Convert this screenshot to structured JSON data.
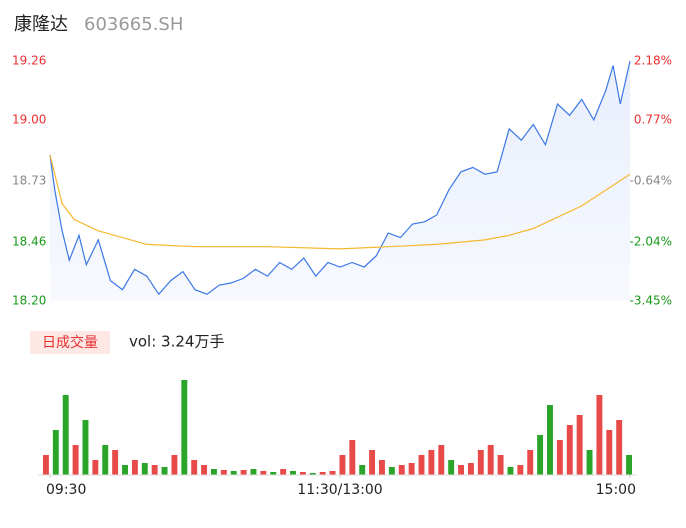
{
  "header": {
    "name": "康隆达",
    "code": "603665.SH"
  },
  "chart_data": {
    "type": "line",
    "xlim": [
      0,
      240
    ],
    "xticks": [
      {
        "value": 0,
        "label": "09:30"
      },
      {
        "value": 120,
        "label": "11:30/13:00"
      },
      {
        "value": 240,
        "label": "15:00"
      }
    ],
    "ylim": [
      18.2,
      19.26
    ],
    "yticks": [
      {
        "value": 19.26,
        "label": "19.26"
      },
      {
        "value": 19.0,
        "label": "19.00"
      },
      {
        "value": 18.73,
        "label": "18.73"
      },
      {
        "value": 18.46,
        "label": "18.46"
      },
      {
        "value": 18.2,
        "label": "18.20"
      }
    ],
    "y2ticks": [
      "2.18%",
      "0.77%",
      "-0.64%",
      "-2.04%",
      "-3.45%"
    ],
    "ytick_colors": [
      "#e83030",
      "#e83030",
      "#888888",
      "#1a9a1a",
      "#1a9a1a"
    ],
    "series": [
      {
        "color": "#3b78e7",
        "x": [
          0,
          2,
          5,
          8,
          12,
          15,
          20,
          25,
          30,
          35,
          40,
          45,
          50,
          55,
          60,
          65,
          70,
          75,
          80,
          85,
          90,
          95,
          100,
          105,
          110,
          115,
          120,
          125,
          130,
          135,
          140,
          145,
          150,
          155,
          160,
          165,
          170,
          175,
          180,
          185,
          190,
          195,
          200,
          205,
          210,
          215,
          220,
          225,
          230,
          233,
          236,
          240
        ],
        "values": [
          18.845,
          18.69,
          18.51,
          18.38,
          18.49,
          18.36,
          18.47,
          18.29,
          18.25,
          18.34,
          18.31,
          18.23,
          18.29,
          18.33,
          18.25,
          18.23,
          18.27,
          18.28,
          18.3,
          18.34,
          18.31,
          18.37,
          18.34,
          18.39,
          18.31,
          18.37,
          18.35,
          18.37,
          18.35,
          18.4,
          18.5,
          18.48,
          18.54,
          18.55,
          18.58,
          18.69,
          18.77,
          18.79,
          18.76,
          18.77,
          18.96,
          18.91,
          18.98,
          18.89,
          19.07,
          19.02,
          19.09,
          19.0,
          19.13,
          19.24,
          19.07,
          19.26
        ]
      },
      {
        "color": "#f5b82e",
        "x": [
          0,
          5,
          10,
          20,
          30,
          40,
          60,
          90,
          120,
          140,
          160,
          180,
          190,
          200,
          210,
          220,
          230,
          240
        ],
        "values": [
          18.845,
          18.63,
          18.56,
          18.51,
          18.48,
          18.45,
          18.44,
          18.44,
          18.43,
          18.44,
          18.45,
          18.47,
          18.49,
          18.52,
          18.57,
          18.62,
          18.69,
          18.76
        ]
      }
    ],
    "volume": {
      "label": "日成交量",
      "text": "vol: 3.24万手",
      "ylim": [
        0,
        100
      ],
      "values": [
        20,
        45,
        80,
        30,
        55,
        15,
        30,
        25,
        10,
        15,
        12,
        10,
        8,
        20,
        95,
        15,
        10,
        6,
        5,
        4,
        5,
        6,
        4,
        3,
        6,
        4,
        3,
        2,
        3,
        4,
        20,
        35,
        10,
        25,
        15,
        8,
        10,
        12,
        20,
        25,
        30,
        15,
        10,
        12,
        25,
        30,
        20,
        8,
        10,
        25,
        40,
        70,
        35,
        50,
        60,
        25,
        80,
        45,
        55,
        20
      ],
      "colors": [
        "#e84a4a",
        "#2aa52a",
        "#2aa52a",
        "#e84a4a",
        "#2aa52a",
        "#e84a4a",
        "#2aa52a",
        "#e84a4a",
        "#2aa52a",
        "#e84a4a",
        "#2aa52a",
        "#e84a4a",
        "#2aa52a",
        "#e84a4a",
        "#2aa52a",
        "#e84a4a",
        "#e84a4a",
        "#2aa52a",
        "#e84a4a",
        "#2aa52a",
        "#e84a4a",
        "#2aa52a",
        "#e84a4a",
        "#2aa52a",
        "#e84a4a",
        "#2aa52a",
        "#e84a4a",
        "#2aa52a",
        "#e84a4a",
        "#e84a4a",
        "#e84a4a",
        "#e84a4a",
        "#2aa52a",
        "#e84a4a",
        "#e84a4a",
        "#2aa52a",
        "#e84a4a",
        "#e84a4a",
        "#e84a4a",
        "#e84a4a",
        "#e84a4a",
        "#2aa52a",
        "#e84a4a",
        "#e84a4a",
        "#e84a4a",
        "#e84a4a",
        "#e84a4a",
        "#2aa52a",
        "#e84a4a",
        "#e84a4a",
        "#2aa52a",
        "#2aa52a",
        "#e84a4a",
        "#e84a4a",
        "#e84a4a",
        "#2aa52a",
        "#e84a4a",
        "#e84a4a",
        "#e84a4a",
        "#2aa52a"
      ]
    }
  }
}
